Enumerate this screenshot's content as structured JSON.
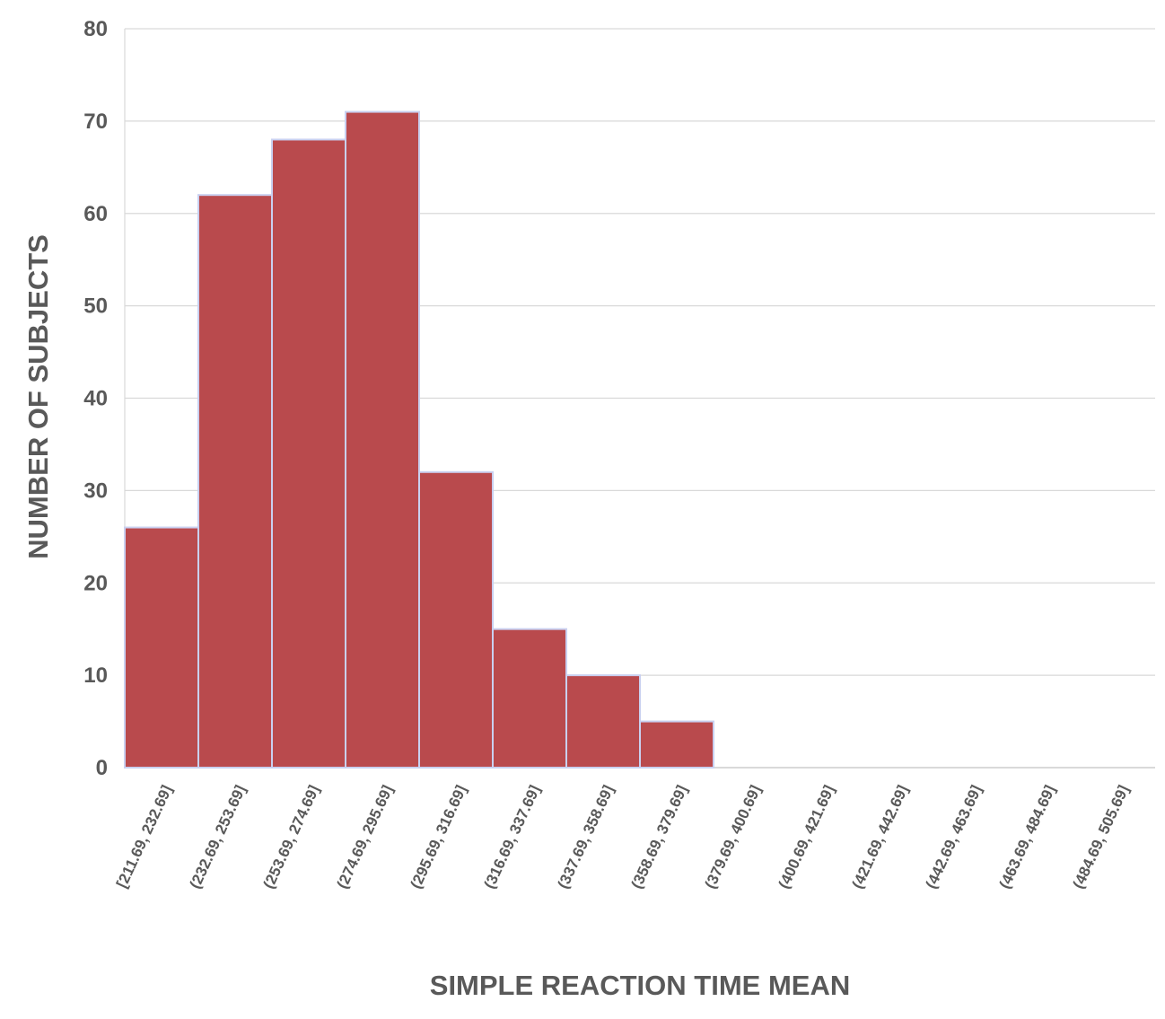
{
  "chart_data": {
    "type": "bar",
    "title": "",
    "xlabel": "SIMPLE REACTION TIME MEAN",
    "ylabel": "NUMBER OF SUBJECTS",
    "ylim": [
      0,
      80
    ],
    "yticks": [
      0,
      10,
      20,
      30,
      40,
      50,
      60,
      70,
      80
    ],
    "grid": true,
    "legend": "none",
    "categories": [
      "[211.69, 232.69]",
      "(232.69, 253.69]",
      "(253.69, 274.69]",
      "(274.69, 295.69]",
      "(295.69, 316.69]",
      "(316.69, 337.69]",
      "(337.69, 358.69]",
      "(358.69, 379.69]",
      "(379.69, 400.69]",
      "(400.69, 421.69]",
      "(421.69, 442.69]",
      "(442.69, 463.69]",
      "(463.69, 484.69]",
      "(484.69, 505.69]"
    ],
    "values": [
      26,
      62,
      68,
      71,
      32,
      15,
      10,
      5,
      0,
      0,
      0,
      0,
      0,
      0
    ],
    "bar_color": "#b94a4d",
    "bar_edge_color": "#c9d0f0",
    "grid_color": "#d9d9d9",
    "text_color": "#595959"
  }
}
